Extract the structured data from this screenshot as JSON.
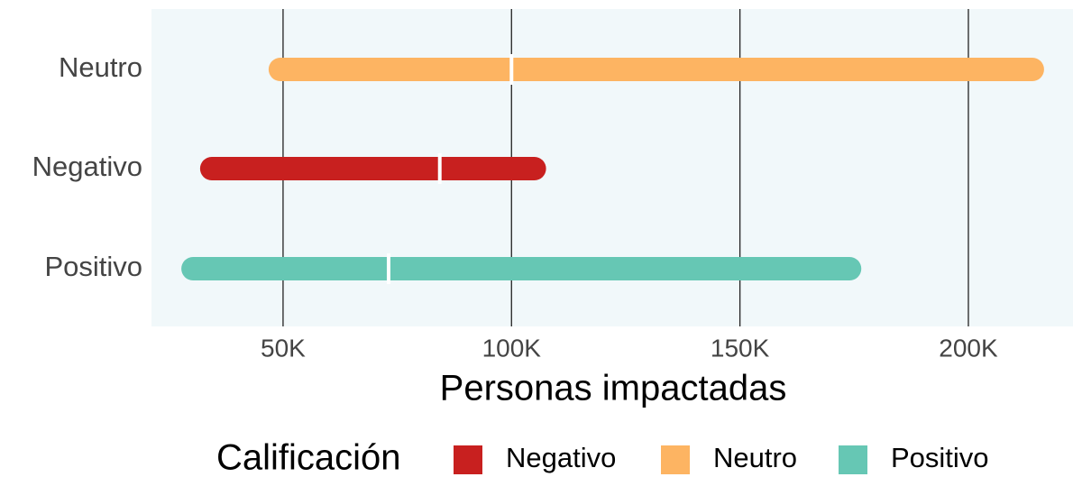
{
  "chart_data": {
    "type": "range",
    "categories": [
      "Neutro",
      "Negativo",
      "Positivo"
    ],
    "series": [
      {
        "name": "Negativo",
        "color": "#c8201f",
        "start": 34400,
        "median": 84300,
        "end": 105000
      },
      {
        "name": "Neutro",
        "color": "#fdb462",
        "start": 49400,
        "median": 100000,
        "end": 214000
      },
      {
        "name": "Positivo",
        "color": "#66c7b4",
        "start": 30300,
        "median": 73100,
        "end": 174000
      }
    ],
    "xlabel": "Personas impactadas",
    "legend_title": "Calificación",
    "xlim": [
      21200,
      222900
    ],
    "xticks": [
      {
        "value": 50000,
        "label": "50K"
      },
      {
        "value": 100000,
        "label": "100K"
      },
      {
        "value": 150000,
        "label": "150K"
      },
      {
        "value": 200000,
        "label": "200K"
      }
    ],
    "grid": true,
    "legend": "bottom"
  }
}
